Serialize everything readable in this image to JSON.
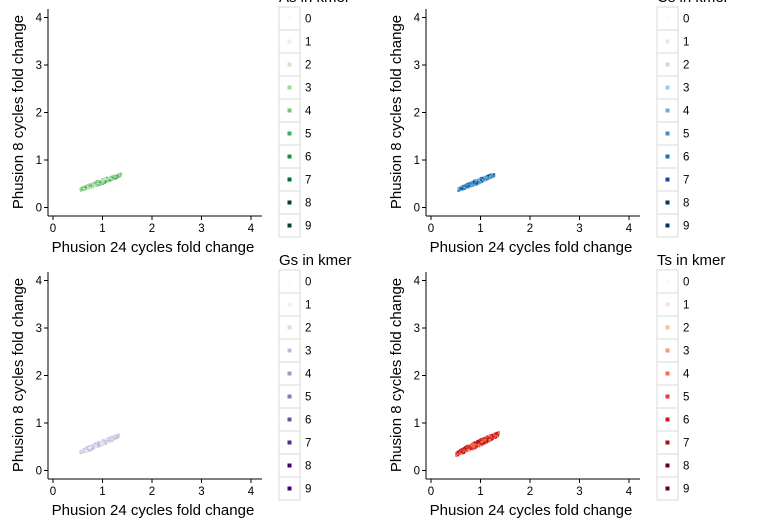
{
  "chart_data": [
    {
      "type": "scatter",
      "xlabel": "Phusion 24 cycles fold change",
      "ylabel": "Phusion 8 cycles fold change",
      "xlim": [
        0,
        4
      ],
      "ylim": [
        0,
        4
      ],
      "x_ticks": [
        "0",
        "1",
        "2",
        "3",
        "4"
      ],
      "y_ticks": [
        "0",
        "1",
        "2",
        "3",
        "4"
      ],
      "legend": {
        "title": "As in kmer",
        "placement": "right",
        "entries": [
          "0",
          "1",
          "2",
          "3",
          "4",
          "5",
          "6",
          "7",
          "8",
          "9"
        ],
        "colors": [
          "#f7fcf5",
          "#e5f5e0",
          "#c7e9c0",
          "#a1d99b",
          "#74c476",
          "#41ab5d",
          "#238b45",
          "#006d2c",
          "#00441b",
          "#00441b"
        ]
      },
      "cloud": {
        "x_range": [
          0.5,
          1.4
        ],
        "y_range": [
          0.35,
          0.75
        ],
        "dominant_levels": [
          1,
          2,
          3,
          4,
          5
        ]
      }
    },
    {
      "type": "scatter",
      "xlabel": "Phusion 24 cycles fold change",
      "ylabel": "Phusion 8 cycles fold change",
      "xlim": [
        0,
        4
      ],
      "ylim": [
        0,
        4
      ],
      "x_ticks": [
        "0",
        "1",
        "2",
        "3",
        "4"
      ],
      "y_ticks": [
        "0",
        "1",
        "2",
        "3",
        "4"
      ],
      "legend": {
        "title": "Cs in kmer",
        "placement": "right",
        "entries": [
          "0",
          "1",
          "2",
          "3",
          "4",
          "5",
          "6",
          "7",
          "8",
          "9"
        ],
        "colors": [
          "#f7fbff",
          "#deebf7",
          "#c6dbef",
          "#9ecae1",
          "#6baed6",
          "#4292c6",
          "#2171b5",
          "#08519c",
          "#08306b",
          "#08306b"
        ]
      },
      "cloud": {
        "x_range": [
          0.5,
          1.3
        ],
        "y_range": [
          0.35,
          0.75
        ],
        "dominant_levels": [
          3,
          4,
          5,
          6,
          7
        ]
      }
    },
    {
      "type": "scatter",
      "xlabel": "Phusion 24 cycles fold change",
      "ylabel": "Phusion 8 cycles fold change",
      "xlim": [
        0,
        4
      ],
      "ylim": [
        0,
        4
      ],
      "x_ticks": [
        "0",
        "1",
        "2",
        "3",
        "4"
      ],
      "y_ticks": [
        "0",
        "1",
        "2",
        "3",
        "4"
      ],
      "legend": {
        "title": "Gs in kmer",
        "placement": "right",
        "entries": [
          "0",
          "1",
          "2",
          "3",
          "4",
          "5",
          "6",
          "7",
          "8",
          "9"
        ],
        "colors": [
          "#fcfbfd",
          "#efedf5",
          "#dadaeb",
          "#bcbddc",
          "#9e9ac8",
          "#807dba",
          "#6a51a3",
          "#54278f",
          "#3f007d",
          "#3f007d"
        ]
      },
      "cloud": {
        "x_range": [
          0.5,
          1.35
        ],
        "y_range": [
          0.35,
          0.8
        ],
        "dominant_levels": [
          1,
          2,
          3
        ]
      }
    },
    {
      "type": "scatter",
      "xlabel": "Phusion 24 cycles fold change",
      "ylabel": "Phusion 8 cycles fold change",
      "xlim": [
        0,
        4
      ],
      "ylim": [
        0,
        4
      ],
      "x_ticks": [
        "0",
        "1",
        "2",
        "3",
        "4"
      ],
      "y_ticks": [
        "0",
        "1",
        "2",
        "3",
        "4"
      ],
      "legend": {
        "title": "Ts in kmer",
        "placement": "right",
        "entries": [
          "0",
          "1",
          "2",
          "3",
          "4",
          "5",
          "6",
          "7",
          "8",
          "9"
        ],
        "colors": [
          "#fff5f0",
          "#fee0d2",
          "#fcbba1",
          "#fc9272",
          "#fb6a4a",
          "#ef3b2c",
          "#cb181d",
          "#a50f15",
          "#67000d",
          "#67000d"
        ]
      },
      "cloud": {
        "x_range": [
          0.45,
          1.4
        ],
        "y_range": [
          0.3,
          0.85
        ],
        "dominant_levels": [
          3,
          4,
          5,
          6,
          7
        ]
      }
    }
  ]
}
